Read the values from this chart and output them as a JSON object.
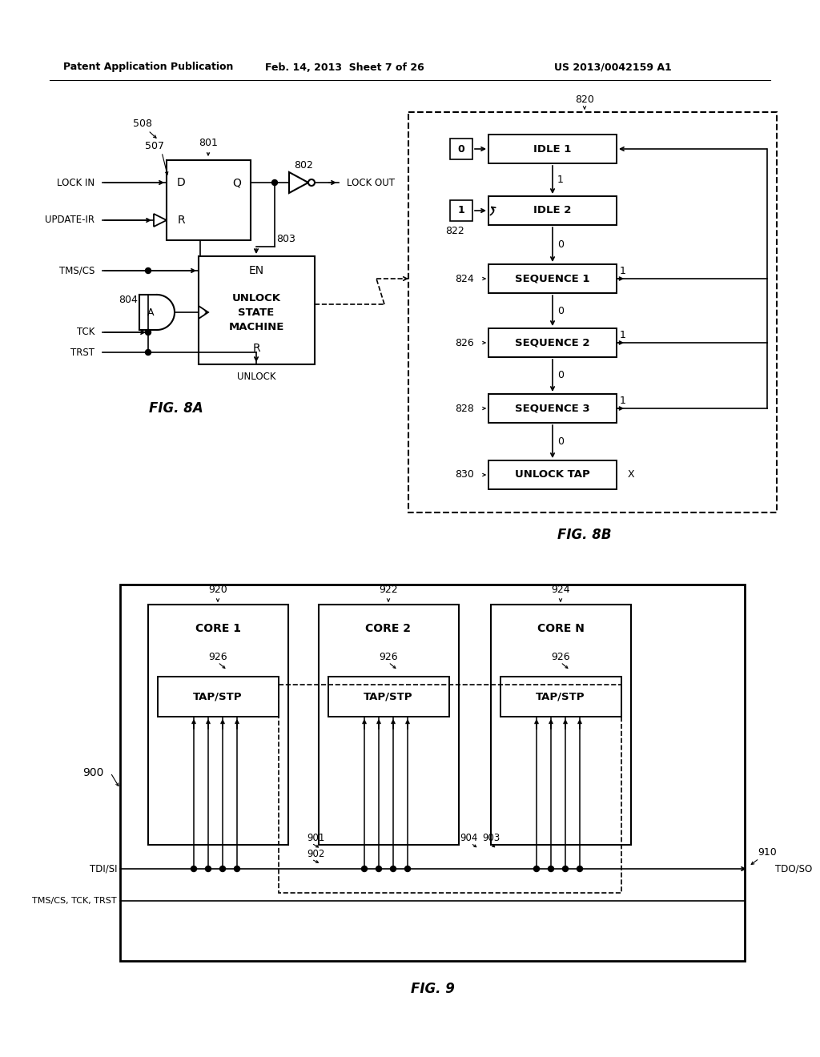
{
  "header_left": "Patent Application Publication",
  "header_mid": "Feb. 14, 2013  Sheet 7 of 26",
  "header_right": "US 2013/0042159 A1",
  "fig8a_caption": "FIG. 8A",
  "fig8b_caption": "FIG. 8B",
  "fig9_caption": "FIG. 9",
  "bg_color": "#ffffff",
  "lc": "#000000",
  "gray_fill": "#c8c8c8"
}
